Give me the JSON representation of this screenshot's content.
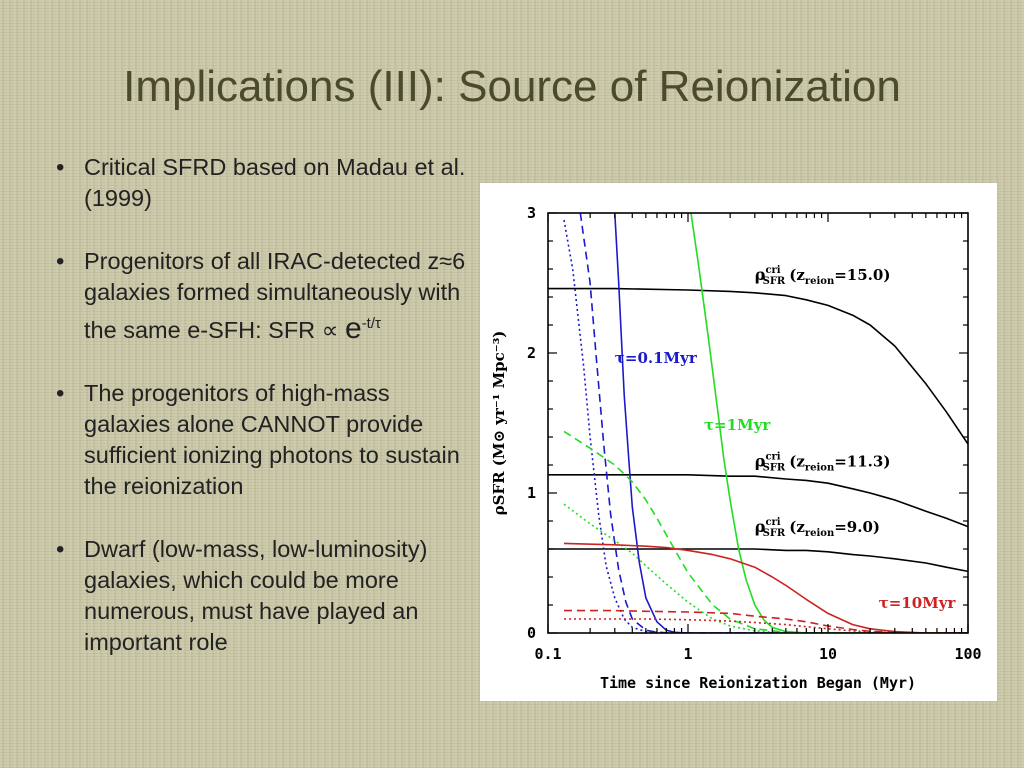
{
  "slide": {
    "title": "Implications (III): Source of Reionization",
    "bullets": [
      {
        "text": "Critical SFRD based on Madau et al. (1999)"
      },
      {
        "text": "Progenitors of all IRAC-detected z≈6 galaxies formed simultaneously with the same e-SFH: SFR ∝ ",
        "exp_base": "e",
        "exp_sup": "-t/τ"
      },
      {
        "text": "The progenitors of high-mass galaxies alone CANNOT provide sufficient ionizing photons to sustain the reionization"
      },
      {
        "text": "Dwarf (low-mass, low-luminosity) galaxies, which could be more numerous, must have played an important role"
      }
    ]
  },
  "chart_data": {
    "type": "line",
    "xscale": "log",
    "xlim": [
      0.1,
      100
    ],
    "ylim": [
      0,
      3
    ],
    "xlabel": "Time since Reionization Began (Myr)",
    "ylabel": "ρSFR (M⊙ yr⁻¹ Mpc⁻³)",
    "xticks": [
      "0.1",
      "1",
      "10",
      "100"
    ],
    "yticks": [
      "0",
      "1",
      "2",
      "3"
    ],
    "colors": {
      "black": "#000000",
      "blue": "#1a1acc",
      "green": "#22dd22",
      "red": "#cc2222"
    },
    "series": [
      {
        "name": "ρcri SFR (zreion=15.0)",
        "color": "black",
        "style": "solid",
        "x": [
          0.1,
          0.3,
          1,
          2,
          3,
          5,
          7,
          10,
          15,
          20,
          30,
          50,
          70,
          100
        ],
        "y": [
          2.46,
          2.46,
          2.45,
          2.44,
          2.43,
          2.41,
          2.38,
          2.34,
          2.27,
          2.2,
          2.05,
          1.78,
          1.58,
          1.35
        ]
      },
      {
        "name": "ρcri SFR (zreion=11.3)",
        "color": "black",
        "style": "solid",
        "x": [
          0.1,
          0.3,
          1,
          2,
          3,
          5,
          7,
          10,
          15,
          20,
          30,
          50,
          70,
          100
        ],
        "y": [
          1.13,
          1.13,
          1.13,
          1.12,
          1.12,
          1.1,
          1.09,
          1.07,
          1.03,
          1.0,
          0.95,
          0.87,
          0.82,
          0.76
        ]
      },
      {
        "name": "ρcri SFR (zreion=9.0)",
        "color": "black",
        "style": "solid",
        "x": [
          0.1,
          0.3,
          1,
          2,
          3,
          5,
          7,
          10,
          15,
          20,
          30,
          50,
          70,
          100
        ],
        "y": [
          0.6,
          0.6,
          0.6,
          0.6,
          0.6,
          0.59,
          0.59,
          0.58,
          0.56,
          0.55,
          0.53,
          0.5,
          0.47,
          0.44
        ]
      },
      {
        "name": "τ=0.1Myr",
        "color": "blue",
        "style": "solid",
        "x": [
          0.3,
          0.32,
          0.35,
          0.38,
          0.4,
          0.45,
          0.5,
          0.6,
          0.7,
          0.8,
          1,
          2,
          100
        ],
        "y": [
          3.0,
          2.5,
          1.7,
          1.2,
          0.9,
          0.5,
          0.25,
          0.08,
          0.02,
          0.005,
          0.0,
          0.0,
          0.0
        ]
      },
      {
        "name": "τ=0.1Myr (dashed)",
        "color": "blue",
        "style": "dashed",
        "x": [
          0.17,
          0.2,
          0.22,
          0.25,
          0.28,
          0.32,
          0.36,
          0.4,
          0.5,
          0.6,
          0.8,
          1,
          100
        ],
        "y": [
          3.0,
          2.5,
          2.0,
          1.35,
          0.85,
          0.45,
          0.22,
          0.1,
          0.02,
          0.005,
          0.0,
          0.0,
          0.0
        ]
      },
      {
        "name": "τ=0.1Myr (dotted)",
        "color": "blue",
        "style": "dotted",
        "x": [
          0.13,
          0.15,
          0.18,
          0.2,
          0.23,
          0.26,
          0.3,
          0.35,
          0.4,
          0.5,
          0.7,
          1,
          100
        ],
        "y": [
          2.95,
          2.6,
          1.9,
          1.4,
          0.85,
          0.48,
          0.25,
          0.1,
          0.04,
          0.01,
          0.0,
          0.0,
          0.0
        ]
      },
      {
        "name": "τ=1Myr",
        "color": "green",
        "style": "solid",
        "x": [
          1.05,
          1.2,
          1.4,
          1.6,
          1.8,
          2,
          2.3,
          2.6,
          3,
          3.5,
          4,
          5,
          7,
          10,
          100
        ],
        "y": [
          3.0,
          2.6,
          2.1,
          1.65,
          1.25,
          0.95,
          0.6,
          0.38,
          0.2,
          0.09,
          0.04,
          0.01,
          0.0,
          0.0,
          0.0
        ]
      },
      {
        "name": "τ=1Myr (dashed)",
        "color": "green",
        "style": "dashed",
        "x": [
          0.13,
          0.2,
          0.3,
          0.4,
          0.5,
          0.6,
          0.8,
          1,
          1.5,
          2,
          3,
          5,
          7,
          10,
          100
        ],
        "y": [
          1.44,
          1.32,
          1.2,
          1.08,
          0.95,
          0.82,
          0.6,
          0.43,
          0.2,
          0.1,
          0.03,
          0.005,
          0.0,
          0.0,
          0.0
        ]
      },
      {
        "name": "τ=1Myr (dotted)",
        "color": "green",
        "style": "dotted",
        "x": [
          0.13,
          0.2,
          0.3,
          0.4,
          0.5,
          0.7,
          1,
          1.5,
          2,
          3,
          5,
          7,
          10,
          100
        ],
        "y": [
          0.92,
          0.78,
          0.66,
          0.57,
          0.48,
          0.35,
          0.22,
          0.1,
          0.05,
          0.015,
          0.0,
          0.0,
          0.0,
          0.0
        ]
      },
      {
        "name": "τ=10Myr",
        "color": "red",
        "style": "solid",
        "x": [
          0.13,
          0.3,
          0.5,
          0.7,
          1,
          1.5,
          2,
          3,
          4,
          5,
          7,
          10,
          15,
          20,
          30,
          50,
          100
        ],
        "y": [
          0.64,
          0.63,
          0.62,
          0.61,
          0.59,
          0.56,
          0.53,
          0.47,
          0.4,
          0.34,
          0.24,
          0.14,
          0.06,
          0.03,
          0.01,
          0.0,
          0.0
        ]
      },
      {
        "name": "τ=10Myr (dashed)",
        "color": "red",
        "style": "dashed",
        "x": [
          0.13,
          0.3,
          0.5,
          1,
          2,
          3,
          5,
          7,
          10,
          15,
          20,
          30,
          50,
          100
        ],
        "y": [
          0.16,
          0.16,
          0.155,
          0.15,
          0.14,
          0.12,
          0.1,
          0.08,
          0.05,
          0.025,
          0.012,
          0.004,
          0.0,
          0.0
        ]
      },
      {
        "name": "τ=10Myr (dotted)",
        "color": "red",
        "style": "dotted",
        "x": [
          0.13,
          0.3,
          0.5,
          1,
          2,
          3,
          5,
          7,
          10,
          15,
          20,
          30,
          50,
          100
        ],
        "y": [
          0.1,
          0.1,
          0.1,
          0.095,
          0.085,
          0.075,
          0.06,
          0.045,
          0.03,
          0.015,
          0.007,
          0.002,
          0.0,
          0.0
        ]
      }
    ],
    "annotations": [
      {
        "base": "ρ",
        "sub": "SFR",
        "sup": "cri",
        "paren_open": "(z",
        "paren_sub": "reion",
        "paren_close": "=15.0)",
        "color": "black",
        "at": [
          3.0,
          2.52
        ]
      },
      {
        "base": "ρ",
        "sub": "SFR",
        "sup": "cri",
        "paren_open": "(z",
        "paren_sub": "reion",
        "paren_close": "=11.3)",
        "color": "black",
        "at": [
          3.0,
          1.19
        ]
      },
      {
        "base": "ρ",
        "sub": "SFR",
        "sup": "cri",
        "paren_open": "(z",
        "paren_sub": "reion",
        "paren_close": "=9.0)",
        "color": "black",
        "at": [
          3.0,
          0.72
        ]
      },
      {
        "text": "τ=0.1Myr",
        "color": "blue",
        "at": [
          0.3,
          1.93
        ]
      },
      {
        "text": "τ=1Myr",
        "color": "green",
        "at": [
          1.3,
          1.45
        ]
      },
      {
        "text": "τ=10Myr",
        "color": "red",
        "at": [
          23,
          0.18
        ]
      }
    ]
  }
}
